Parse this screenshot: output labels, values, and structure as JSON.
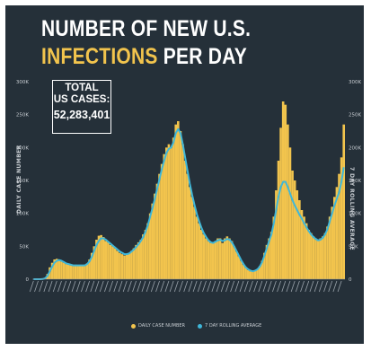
{
  "header": {
    "title_line1": "NUMBER OF NEW U.S.",
    "title_line2_highlight": "INFECTIONS",
    "title_line2_rest": " PER DAY"
  },
  "total_box": {
    "line1": "TOTAL",
    "line2": "US CASES:",
    "value": "52,283,401"
  },
  "colors": {
    "background": "#253039",
    "bars": "#f2c44d",
    "line": "#3fb7d9",
    "title_highlight": "#f2c44d"
  },
  "chart_data": {
    "type": "bar",
    "title": "NUMBER OF NEW U.S. INFECTIONS PER DAY",
    "ylabel": "DAILY CASE NUMBER",
    "ylabel_right": "7 DAY ROLLING AVERAGE",
    "ylim": [
      0,
      300000
    ],
    "yticks": [
      0,
      50000,
      100000,
      150000,
      200000,
      250000,
      300000
    ],
    "ytick_labels": [
      "0",
      "50K",
      "100K",
      "150K",
      "200K",
      "250K",
      "300K"
    ],
    "ytick_labels_right": [
      "0",
      "50K",
      "100K",
      "150K",
      "200K",
      "250K",
      "300K"
    ],
    "grid": false,
    "legend_position": "bottom",
    "series": [
      {
        "name": "DAILY CASE NUMBER",
        "kind": "bar",
        "values": [
          0,
          0,
          0,
          0,
          500,
          2000,
          8000,
          18000,
          25000,
          30000,
          31000,
          29000,
          27000,
          25000,
          23000,
          22000,
          21000,
          21000,
          22000,
          21000,
          20000,
          20000,
          22000,
          24000,
          30000,
          40000,
          50000,
          60000,
          66000,
          67000,
          64000,
          58000,
          56000,
          52000,
          50000,
          47000,
          43000,
          40000,
          38000,
          36000,
          38000,
          40000,
          43000,
          47000,
          52000,
          56000,
          60000,
          68000,
          75000,
          85000,
          100000,
          115000,
          130000,
          145000,
          160000,
          175000,
          190000,
          200000,
          205000,
          200000,
          215000,
          235000,
          240000,
          225000,
          205000,
          180000,
          160000,
          140000,
          125000,
          110000,
          95000,
          85000,
          75000,
          68000,
          62000,
          58000,
          55000,
          55000,
          58000,
          62000,
          62000,
          55000,
          62000,
          65000,
          62000,
          58000,
          50000,
          42000,
          35000,
          28000,
          22000,
          18000,
          14000,
          12000,
          12000,
          13000,
          15000,
          20000,
          28000,
          40000,
          52000,
          62000,
          72000,
          95000,
          135000,
          180000,
          230000,
          270000,
          265000,
          235000,
          200000,
          165000,
          150000,
          135000,
          120000,
          105000,
          95000,
          85000,
          75000,
          70000,
          65000,
          62000,
          60000,
          62000,
          65000,
          70000,
          80000,
          95000,
          110000,
          125000,
          140000,
          160000,
          185000,
          235000
        ],
        "color": "#f2c44d"
      },
      {
        "name": "7 DAY ROLLING AVERAGE",
        "kind": "line",
        "values": [
          0,
          0,
          0,
          0,
          300,
          1500,
          5000,
          12000,
          19000,
          25000,
          28000,
          29000,
          28000,
          26000,
          24000,
          23000,
          22000,
          21000,
          21000,
          21000,
          21000,
          21000,
          21000,
          23000,
          27000,
          34000,
          43000,
          52000,
          58000,
          62000,
          62000,
          60000,
          57000,
          54000,
          51000,
          48000,
          45000,
          42000,
          40000,
          38000,
          38000,
          39000,
          42000,
          45000,
          49000,
          53000,
          58000,
          64000,
          72000,
          82000,
          95000,
          108000,
          122000,
          137000,
          152000,
          167000,
          180000,
          192000,
          198000,
          200000,
          208000,
          222000,
          228000,
          222000,
          205000,
          185000,
          165000,
          145000,
          128000,
          113000,
          99000,
          88000,
          78000,
          70000,
          64000,
          59000,
          56000,
          55000,
          57000,
          59000,
          60000,
          58000,
          59000,
          61000,
          60000,
          56000,
          50000,
          43000,
          36000,
          29000,
          23000,
          18000,
          15000,
          13000,
          12000,
          13000,
          15000,
          19000,
          26000,
          36000,
          47000,
          58000,
          68000,
          85000,
          105000,
          125000,
          140000,
          148000,
          148000,
          140000,
          130000,
          120000,
          112000,
          105000,
          98000,
          92000,
          85000,
          79000,
          73000,
          68000,
          64000,
          61000,
          59000,
          60000,
          63000,
          68000,
          76000,
          88000,
          100000,
          112000,
          122000,
          132000,
          148000,
          170000
        ],
        "color": "#3fb7d9"
      }
    ]
  }
}
